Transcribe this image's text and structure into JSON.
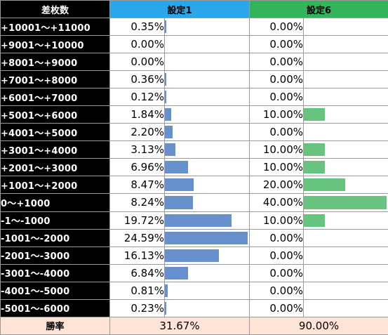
{
  "chart_data": {
    "type": "table",
    "headers": {
      "diff": "差枚数",
      "setting1": "設定1",
      "setting6": "設定6"
    },
    "colors": {
      "setting1_header": "#2aa6ea",
      "setting6_header": "#34b45a",
      "setting1_bar": "#6691cc",
      "setting6_bar": "#66c47e",
      "label_background": "#000000",
      "win_row_background": "#fde4d6"
    },
    "rows": [
      {
        "label": "+10001〜+11000",
        "s1_text": "0.35%",
        "s1": 0.35,
        "s6_text": "0.00%",
        "s6": 0
      },
      {
        "label": "+9001〜+10000",
        "s1_text": "0.00%",
        "s1": 0,
        "s6_text": "0.00%",
        "s6": 0
      },
      {
        "label": "+8001〜+9000",
        "s1_text": "0.00%",
        "s1": 0,
        "s6_text": "0.00%",
        "s6": 0
      },
      {
        "label": "+7001〜+8000",
        "s1_text": "0.36%",
        "s1": 0.36,
        "s6_text": "0.00%",
        "s6": 0
      },
      {
        "label": "+6001〜+7000",
        "s1_text": "0.12%",
        "s1": 0.12,
        "s6_text": "0.00%",
        "s6": 0
      },
      {
        "label": "+5001〜+6000",
        "s1_text": "1.84%",
        "s1": 1.84,
        "s6_text": "10.00%",
        "s6": 10
      },
      {
        "label": "+4001〜+5000",
        "s1_text": "2.20%",
        "s1": 2.2,
        "s6_text": "0.00%",
        "s6": 0
      },
      {
        "label": "+3001〜+4000",
        "s1_text": "3.13%",
        "s1": 3.13,
        "s6_text": "10.00%",
        "s6": 10
      },
      {
        "label": "+2001〜+3000",
        "s1_text": "6.96%",
        "s1": 6.96,
        "s6_text": "10.00%",
        "s6": 10
      },
      {
        "label": "+1001〜+2000",
        "s1_text": "8.47%",
        "s1": 8.47,
        "s6_text": "20.00%",
        "s6": 20
      },
      {
        "label": "0〜+1000",
        "s1_text": "8.24%",
        "s1": 8.24,
        "s6_text": "40.00%",
        "s6": 40
      },
      {
        "label": "-1〜-1000",
        "s1_text": "19.72%",
        "s1": 19.72,
        "s6_text": "10.00%",
        "s6": 10
      },
      {
        "label": "-1001〜-2000",
        "s1_text": "24.59%",
        "s1": 24.59,
        "s6_text": "0.00%",
        "s6": 0
      },
      {
        "label": "-2001〜-3000",
        "s1_text": "16.13%",
        "s1": 16.13,
        "s6_text": "0.00%",
        "s6": 0
      },
      {
        "label": "-3001〜-4000",
        "s1_text": "6.84%",
        "s1": 6.84,
        "s6_text": "0.00%",
        "s6": 0
      },
      {
        "label": "-4001〜-5000",
        "s1_text": "0.81%",
        "s1": 0.81,
        "s6_text": "0.00%",
        "s6": 0
      },
      {
        "label": "-5001〜-6000",
        "s1_text": "0.23%",
        "s1": 0.23,
        "s6_text": "0.00%",
        "s6": 0
      }
    ],
    "win_rate": {
      "label": "勝率",
      "setting1": "31.67%",
      "setting6": "90.00%"
    },
    "bar_scale_max": {
      "setting1": 24.59,
      "setting6": 40
    }
  }
}
